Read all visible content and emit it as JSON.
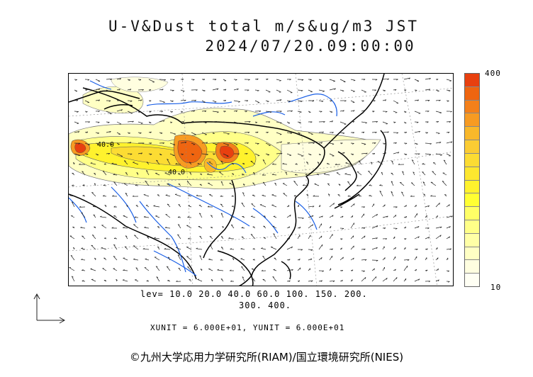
{
  "title": {
    "line1": "U-V&Dust total m/s&ug/m3 JST",
    "line2": "2024/07/20.09:00:00"
  },
  "colorbar": {
    "max_label": "400",
    "min_label": "10",
    "colors": [
      "#e8400f",
      "#ef6510",
      "#f4801a",
      "#f79b22",
      "#f9b82a",
      "#fbcc33",
      "#fcdc33",
      "#fde72f",
      "#fff22d",
      "#ffff33",
      "#ffff66",
      "#ffff88",
      "#ffffa6",
      "#ffffc4",
      "#fffee0",
      "#fffff4"
    ]
  },
  "levels": {
    "line1": "lev= 10.0 20.0 40.0 60.0 100. 150. 200.",
    "line2": "300. 400."
  },
  "units_label": "XUNIT = 6.000E+01, YUNIT = 6.000E+01",
  "contour_labels": [
    "40.0",
    "40.0"
  ],
  "copyright": "©九州大学応用力学研究所(RIAM)/国立環境研究所(NIES)",
  "map_colors": {
    "coast": "#000000",
    "river": "#1a5fe6",
    "grid": "#888888",
    "wind": "#222222"
  }
}
